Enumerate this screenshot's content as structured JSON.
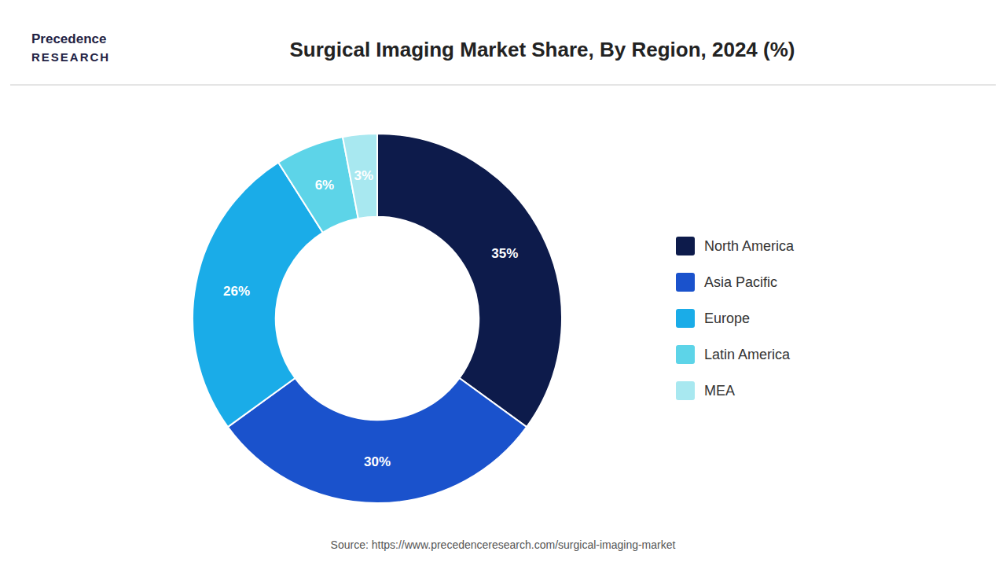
{
  "chart_data": {
    "type": "donut",
    "title": "Surgical Imaging Market Share, By Region, 2024 (%)",
    "categories": [
      "North America",
      "Asia Pacific",
      "Europe",
      "Latin America",
      "MEA"
    ],
    "values": [
      35,
      30,
      26,
      6,
      3
    ],
    "value_labels": [
      "35%",
      "30%",
      "26%",
      "6%",
      "3%"
    ],
    "colors": [
      "#0d1b4b",
      "#1a52cc",
      "#1aace8",
      "#5dd4e8",
      "#a8e8f0"
    ],
    "data_labels": true,
    "legend": "right",
    "annotations": [
      "Precedence",
      "RESEARCH",
      "Source: https://www.precedenceresearch.com/surgical-imaging-market"
    ]
  }
}
